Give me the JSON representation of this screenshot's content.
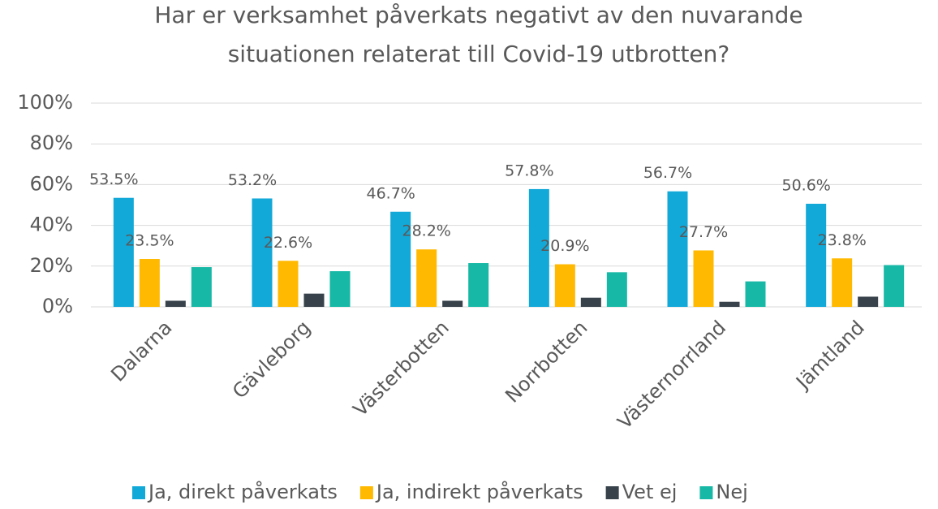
{
  "chart_data": {
    "type": "bar",
    "title": [
      "Har er verksamhet påverkats negativt av den nuvarande",
      "situationen relaterat till Covid-19 utbrotten?"
    ],
    "categories": [
      "Dalarna",
      "Gävleborg",
      "Västerbotten",
      "Norrbotten",
      "Västernorrland",
      "Jämtland"
    ],
    "series": [
      {
        "name": "Ja, direkt påverkats",
        "color": "#12a9d9",
        "values": [
          53.5,
          53.2,
          46.7,
          57.8,
          56.7,
          50.6
        ],
        "value_labels": [
          "53.5%",
          "53.2%",
          "46.7%",
          "57.8%",
          "56.7%",
          "50.6%"
        ]
      },
      {
        "name": "Ja, indirekt påverkats",
        "color": "#ffb900",
        "values": [
          23.5,
          22.6,
          28.2,
          20.9,
          27.7,
          23.8
        ],
        "value_labels": [
          "23.5%",
          "22.6%",
          "28.2%",
          "20.9%",
          "27.7%",
          "23.8%"
        ]
      },
      {
        "name": "Vet ej",
        "color": "#37424a",
        "values": [
          3,
          6.5,
          3,
          4.5,
          2.5,
          5
        ]
      },
      {
        "name": "Nej",
        "color": "#17b8a6",
        "values": [
          19.5,
          17.5,
          21.5,
          17,
          12.5,
          20.5
        ]
      }
    ],
    "ylim": [
      0,
      100
    ],
    "yticks": [
      {
        "value": 0,
        "label": "0%"
      },
      {
        "value": 20,
        "label": "20%"
      },
      {
        "value": 40,
        "label": "40%"
      },
      {
        "value": 60,
        "label": "60%"
      },
      {
        "value": 80,
        "label": "80%"
      },
      {
        "value": 100,
        "label": "100%"
      }
    ],
    "grid": true,
    "legend": "bottom"
  }
}
